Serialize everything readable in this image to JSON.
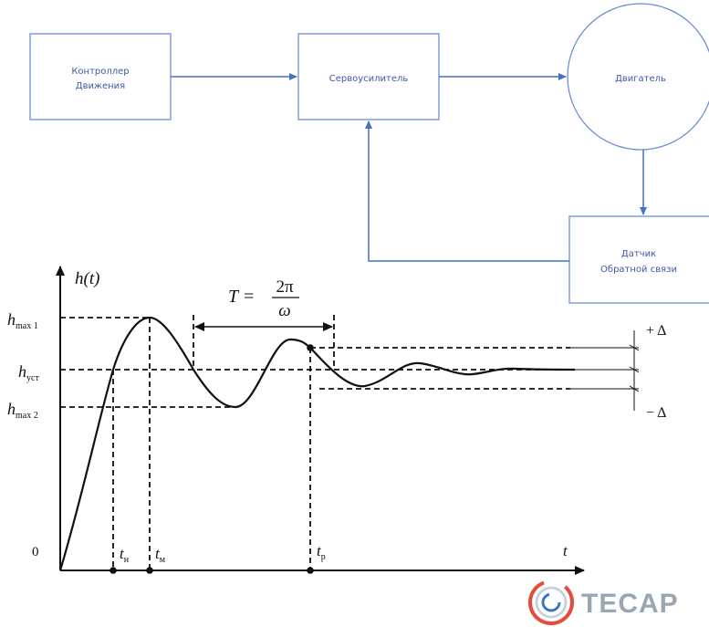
{
  "diagram": {
    "controller": {
      "line1": "Контроллер",
      "line2": "Движения"
    },
    "amplifier": {
      "label": "Сервоусилитель"
    },
    "motor": {
      "label": "Двигатель"
    },
    "sensor": {
      "line1": "Датчик",
      "line2": "Обратной связи"
    },
    "colors": {
      "box_stroke": "#6b8fd4",
      "arrow": "#4472c4",
      "text": "#3f5aa8"
    }
  },
  "graph": {
    "y_axis_label": "h(t)",
    "x_axis_label": "t",
    "origin_label": "0",
    "h_max1": {
      "base": "h",
      "sub": "max 1"
    },
    "h_ust": {
      "base": "h",
      "sub": "уст"
    },
    "h_max2": {
      "base": "h",
      "sub": "max 2"
    },
    "t_n": {
      "base": "t",
      "sub": "н"
    },
    "t_m": {
      "base": "t",
      "sub": "м"
    },
    "t_r": {
      "base": "t",
      "sub": "р"
    },
    "period": {
      "lhs": "T =",
      "numerator": "2π",
      "denominator": "ω"
    },
    "plus_delta": "+ Δ",
    "minus_delta": "− Δ"
  },
  "logo": {
    "text": "TECAP",
    "colors": {
      "ring_outer": "#e54b3c",
      "ring_inner": "#3a78c9"
    }
  }
}
